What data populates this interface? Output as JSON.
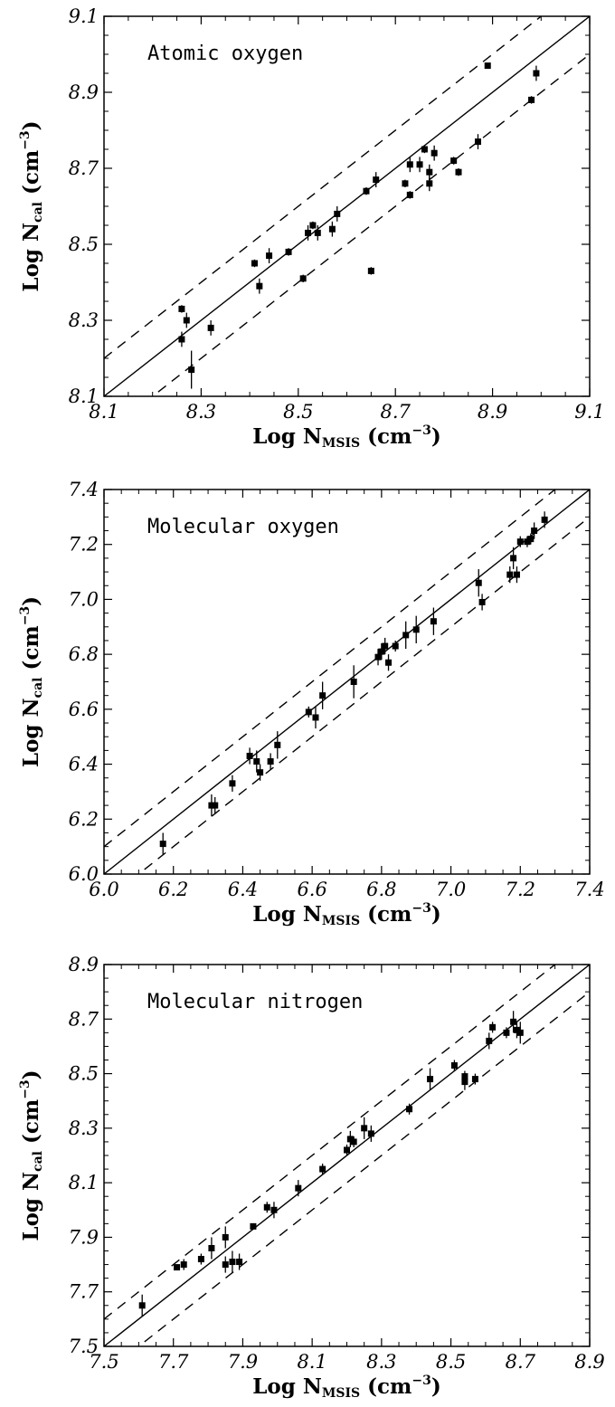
{
  "chart_data": [
    {
      "type": "scatter",
      "title": "Atomic oxygen",
      "xlabel": "Log N_MSIS (cm^-3)",
      "ylabel": "Log N_cal (cm^-3)",
      "xlim": [
        8.1,
        9.1
      ],
      "ylim": [
        8.1,
        9.1
      ],
      "ticks": [
        "8.1",
        "8.3",
        "8.5",
        "8.7",
        "8.9",
        "9.1"
      ],
      "reference_lines": {
        "identity_offset": 0,
        "dashed_offsets": [
          0.1,
          -0.1
        ]
      },
      "points": [
        {
          "x": 8.26,
          "y": 8.33,
          "err": 0.01
        },
        {
          "x": 8.26,
          "y": 8.25,
          "err": 0.02
        },
        {
          "x": 8.27,
          "y": 8.3,
          "err": 0.02
        },
        {
          "x": 8.28,
          "y": 8.17,
          "err": 0.05
        },
        {
          "x": 8.32,
          "y": 8.28,
          "err": 0.02
        },
        {
          "x": 8.41,
          "y": 8.45,
          "err": 0.01
        },
        {
          "x": 8.42,
          "y": 8.39,
          "err": 0.02
        },
        {
          "x": 8.44,
          "y": 8.47,
          "err": 0.02
        },
        {
          "x": 8.48,
          "y": 8.48,
          "err": 0.01
        },
        {
          "x": 8.51,
          "y": 8.41,
          "err": 0.01
        },
        {
          "x": 8.52,
          "y": 8.53,
          "err": 0.02
        },
        {
          "x": 8.53,
          "y": 8.55,
          "err": 0.01
        },
        {
          "x": 8.54,
          "y": 8.53,
          "err": 0.02
        },
        {
          "x": 8.57,
          "y": 8.54,
          "err": 0.02
        },
        {
          "x": 8.58,
          "y": 8.58,
          "err": 0.02
        },
        {
          "x": 8.64,
          "y": 8.64,
          "err": 0.01
        },
        {
          "x": 8.65,
          "y": 8.43,
          "err": 0.01
        },
        {
          "x": 8.66,
          "y": 8.67,
          "err": 0.02
        },
        {
          "x": 8.72,
          "y": 8.66,
          "err": 0.01
        },
        {
          "x": 8.73,
          "y": 8.63,
          "err": 0.01
        },
        {
          "x": 8.73,
          "y": 8.71,
          "err": 0.02
        },
        {
          "x": 8.75,
          "y": 8.71,
          "err": 0.02
        },
        {
          "x": 8.76,
          "y": 8.75,
          "err": 0.01
        },
        {
          "x": 8.77,
          "y": 8.69,
          "err": 0.02
        },
        {
          "x": 8.77,
          "y": 8.66,
          "err": 0.02
        },
        {
          "x": 8.78,
          "y": 8.74,
          "err": 0.02
        },
        {
          "x": 8.82,
          "y": 8.72,
          "err": 0.01
        },
        {
          "x": 8.83,
          "y": 8.69,
          "err": 0.01
        },
        {
          "x": 8.87,
          "y": 8.77,
          "err": 0.02
        },
        {
          "x": 8.89,
          "y": 8.97,
          "err": 0.0
        },
        {
          "x": 8.98,
          "y": 8.88,
          "err": 0.01
        },
        {
          "x": 8.99,
          "y": 8.95,
          "err": 0.02
        }
      ]
    },
    {
      "type": "scatter",
      "title": "Molecular oxygen",
      "xlabel": "Log N_MSIS (cm^-3)",
      "ylabel": "Log N_cal (cm^-3)",
      "xlim": [
        6.0,
        7.4
      ],
      "ylim": [
        6.0,
        7.4
      ],
      "ticks": [
        "6.0",
        "6.2",
        "6.4",
        "6.6",
        "6.8",
        "7.0",
        "7.2",
        "7.4"
      ],
      "reference_lines": {
        "identity_offset": 0,
        "dashed_offsets": [
          0.1,
          -0.1
        ]
      },
      "points": [
        {
          "x": 6.17,
          "y": 6.11,
          "err": 0.04
        },
        {
          "x": 6.31,
          "y": 6.25,
          "err": 0.04
        },
        {
          "x": 6.32,
          "y": 6.25,
          "err": 0.03
        },
        {
          "x": 6.37,
          "y": 6.33,
          "err": 0.03
        },
        {
          "x": 6.42,
          "y": 6.43,
          "err": 0.03
        },
        {
          "x": 6.44,
          "y": 6.41,
          "err": 0.04
        },
        {
          "x": 6.45,
          "y": 6.37,
          "err": 0.03
        },
        {
          "x": 6.48,
          "y": 6.41,
          "err": 0.03
        },
        {
          "x": 6.5,
          "y": 6.47,
          "err": 0.05
        },
        {
          "x": 6.59,
          "y": 6.59,
          "err": 0.02
        },
        {
          "x": 6.61,
          "y": 6.57,
          "err": 0.04
        },
        {
          "x": 6.63,
          "y": 6.65,
          "err": 0.05
        },
        {
          "x": 6.72,
          "y": 6.7,
          "err": 0.06
        },
        {
          "x": 6.79,
          "y": 6.79,
          "err": 0.03
        },
        {
          "x": 6.8,
          "y": 6.81,
          "err": 0.03
        },
        {
          "x": 6.81,
          "y": 6.83,
          "err": 0.03
        },
        {
          "x": 6.82,
          "y": 6.77,
          "err": 0.03
        },
        {
          "x": 6.84,
          "y": 6.83,
          "err": 0.02
        },
        {
          "x": 6.87,
          "y": 6.87,
          "err": 0.05
        },
        {
          "x": 6.9,
          "y": 6.89,
          "err": 0.05
        },
        {
          "x": 6.95,
          "y": 6.92,
          "err": 0.05
        },
        {
          "x": 7.08,
          "y": 7.06,
          "err": 0.05
        },
        {
          "x": 7.09,
          "y": 6.99,
          "err": 0.03
        },
        {
          "x": 7.17,
          "y": 7.09,
          "err": 0.03
        },
        {
          "x": 7.18,
          "y": 7.15,
          "err": 0.04
        },
        {
          "x": 7.19,
          "y": 7.09,
          "err": 0.03
        },
        {
          "x": 7.2,
          "y": 7.21,
          "err": 0.02
        },
        {
          "x": 7.22,
          "y": 7.21,
          "err": 0.02
        },
        {
          "x": 7.23,
          "y": 7.22,
          "err": 0.02
        },
        {
          "x": 7.24,
          "y": 7.25,
          "err": 0.03
        },
        {
          "x": 7.27,
          "y": 7.29,
          "err": 0.03
        }
      ]
    },
    {
      "type": "scatter",
      "title": "Molecular nitrogen",
      "xlabel": "Log N_MSIS (cm^-3)",
      "ylabel": "Log N_cal (cm^-3)",
      "xlim": [
        7.5,
        8.9
      ],
      "ylim": [
        7.5,
        8.9
      ],
      "ticks": [
        "7.5",
        "7.7",
        "7.9",
        "8.1",
        "8.3",
        "8.5",
        "8.7",
        "8.9"
      ],
      "reference_lines": {
        "identity_offset": 0,
        "dashed_offsets": [
          0.1,
          -0.1
        ]
      },
      "points": [
        {
          "x": 7.61,
          "y": 7.65,
          "err": 0.04
        },
        {
          "x": 7.71,
          "y": 7.79,
          "err": 0.01
        },
        {
          "x": 7.73,
          "y": 7.8,
          "err": 0.02
        },
        {
          "x": 7.78,
          "y": 7.82,
          "err": 0.02
        },
        {
          "x": 7.81,
          "y": 7.86,
          "err": 0.04
        },
        {
          "x": 7.85,
          "y": 7.9,
          "err": 0.04
        },
        {
          "x": 7.85,
          "y": 7.8,
          "err": 0.03
        },
        {
          "x": 7.87,
          "y": 7.81,
          "err": 0.04
        },
        {
          "x": 7.89,
          "y": 7.81,
          "err": 0.03
        },
        {
          "x": 7.93,
          "y": 7.94,
          "err": 0.01
        },
        {
          "x": 7.97,
          "y": 8.01,
          "err": 0.02
        },
        {
          "x": 7.99,
          "y": 8.0,
          "err": 0.03
        },
        {
          "x": 8.06,
          "y": 8.08,
          "err": 0.03
        },
        {
          "x": 8.13,
          "y": 8.15,
          "err": 0.02
        },
        {
          "x": 8.2,
          "y": 8.22,
          "err": 0.02
        },
        {
          "x": 8.21,
          "y": 8.26,
          "err": 0.03
        },
        {
          "x": 8.22,
          "y": 8.25,
          "err": 0.02
        },
        {
          "x": 8.25,
          "y": 8.3,
          "err": 0.04
        },
        {
          "x": 8.27,
          "y": 8.28,
          "err": 0.03
        },
        {
          "x": 8.38,
          "y": 8.37,
          "err": 0.02
        },
        {
          "x": 8.44,
          "y": 8.48,
          "err": 0.04
        },
        {
          "x": 8.51,
          "y": 8.53,
          "err": 0.02
        },
        {
          "x": 8.54,
          "y": 8.47,
          "err": 0.03
        },
        {
          "x": 8.54,
          "y": 8.49,
          "err": 0.02
        },
        {
          "x": 8.57,
          "y": 8.48,
          "err": 0.02
        },
        {
          "x": 8.61,
          "y": 8.62,
          "err": 0.03
        },
        {
          "x": 8.62,
          "y": 8.67,
          "err": 0.02
        },
        {
          "x": 8.66,
          "y": 8.65,
          "err": 0.02
        },
        {
          "x": 8.68,
          "y": 8.69,
          "err": 0.04
        },
        {
          "x": 8.69,
          "y": 8.66,
          "err": 0.03
        },
        {
          "x": 8.7,
          "y": 8.65,
          "err": 0.04
        }
      ]
    }
  ]
}
